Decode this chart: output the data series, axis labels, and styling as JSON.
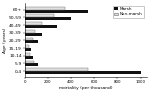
{
  "title": "",
  "xlabel": "mortality (per thousand)",
  "ylabel": "Age (years)",
  "age_groups": [
    "60+",
    "50-59",
    "40-49",
    "30-39",
    "20-29",
    "15-19",
    "10-14",
    "5-9",
    "0-4"
  ],
  "marsh": [
    550,
    400,
    280,
    150,
    120,
    55,
    70,
    120,
    1000
  ],
  "nonmarsh": [
    350,
    250,
    150,
    90,
    75,
    40,
    45,
    80,
    550
  ],
  "marsh_color": "#111111",
  "nonmarsh_color": "#e0e0e0",
  "xlim": [
    0,
    1050
  ],
  "xticks": [
    0,
    200,
    400,
    600,
    800,
    1000
  ],
  "bar_height": 0.38,
  "legend_labels": [
    "Marsh",
    "Non-marsh"
  ],
  "background_color": "#ffffff"
}
